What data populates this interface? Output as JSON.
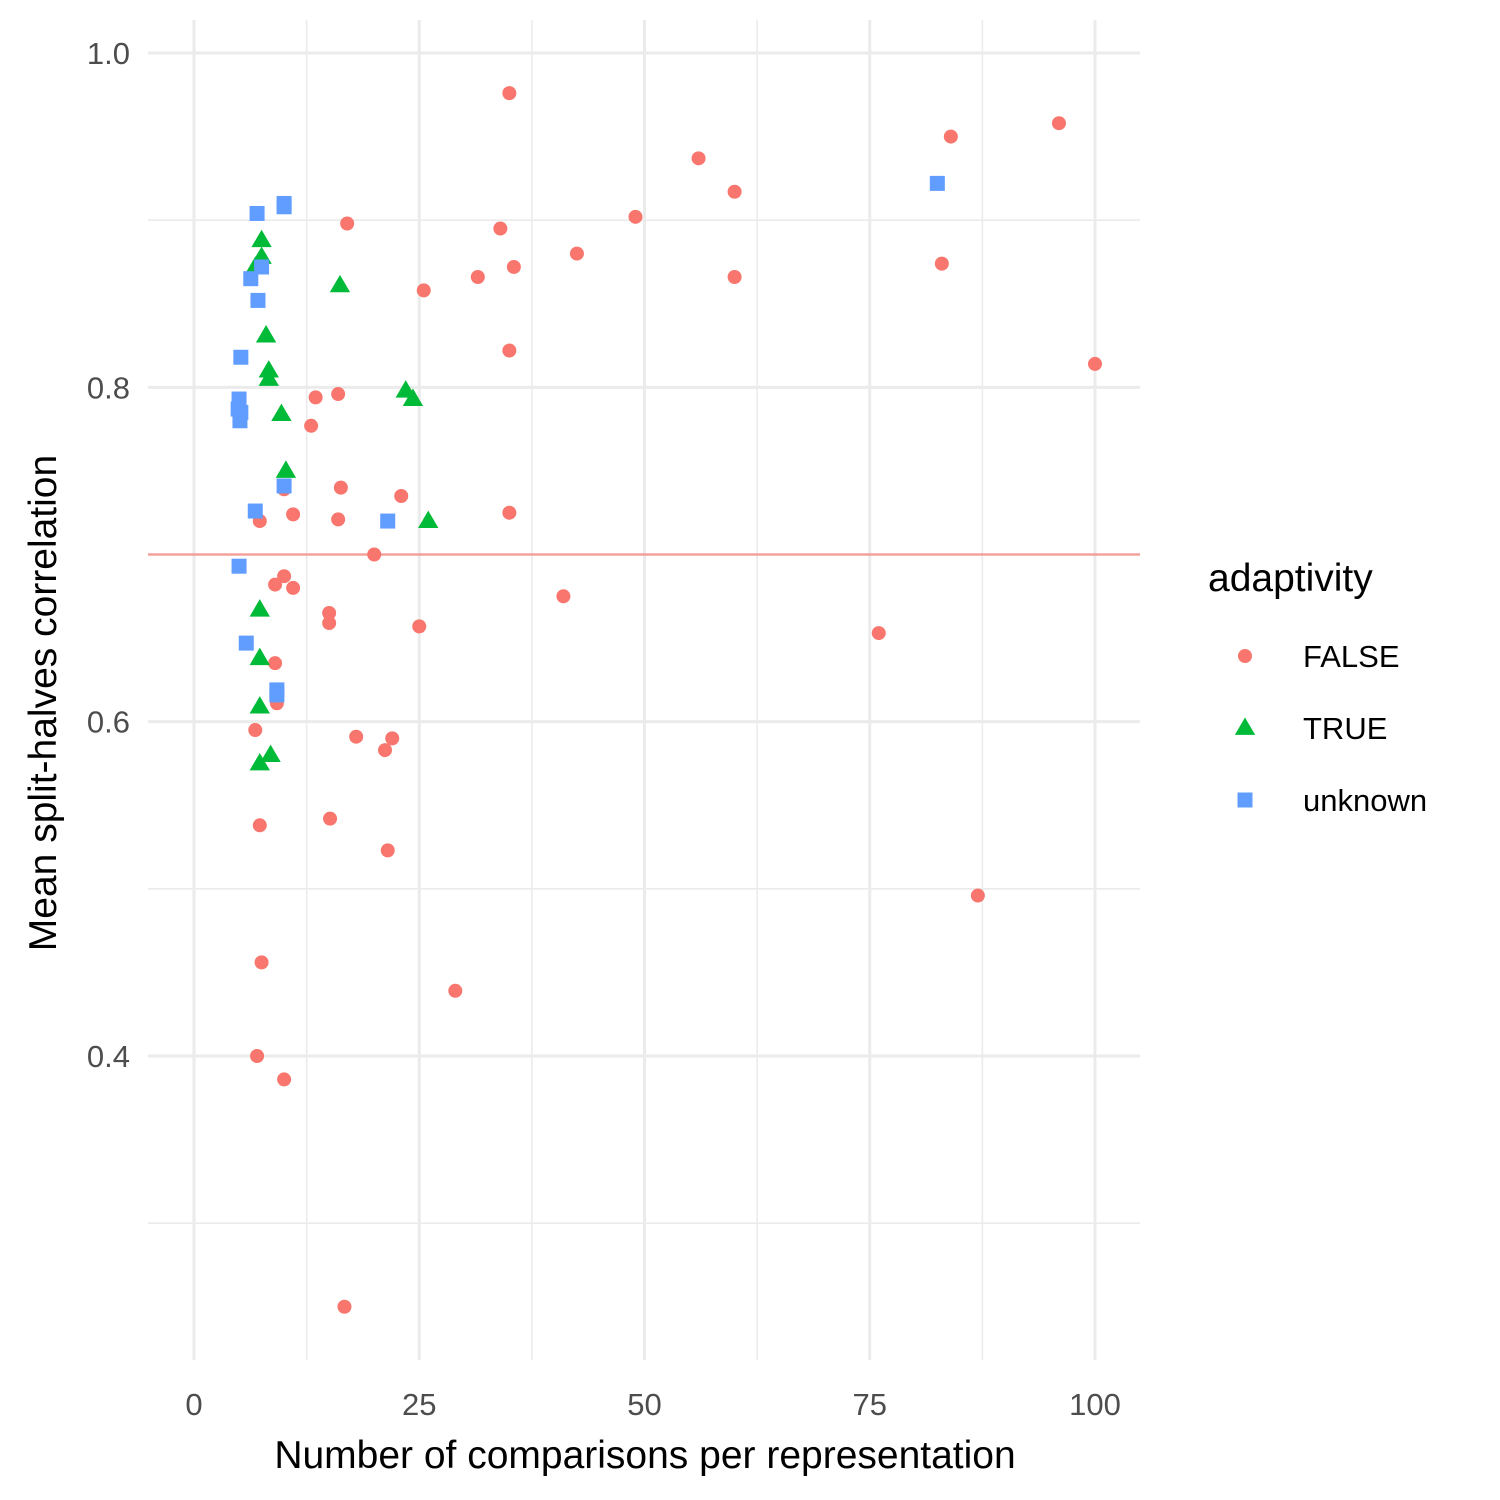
{
  "chart_data": {
    "type": "scatter",
    "xlabel": "Number of comparisons per representation",
    "ylabel": "Mean split-halves correlation",
    "xlim": [
      0,
      100
    ],
    "ylim": [
      0.3,
      1.0
    ],
    "x_ticks": [
      0,
      25,
      50,
      75,
      100
    ],
    "y_ticks": [
      0.4,
      0.6,
      0.8,
      1.0
    ],
    "x_tick_labels": [
      "0",
      "25",
      "50",
      "75",
      "100"
    ],
    "y_tick_labels": [
      "0.4",
      "0.6",
      "0.8",
      "1.0"
    ],
    "grid": true,
    "reference_line": {
      "y": 0.7,
      "color": "#F8766D"
    },
    "legend": {
      "title": "adaptivity",
      "position": "right"
    },
    "series": [
      {
        "name": "FALSE",
        "shape": "circle",
        "color": "#F8766D",
        "points": [
          [
            35,
            0.976
          ],
          [
            96,
            0.958
          ],
          [
            84,
            0.95
          ],
          [
            56,
            0.937
          ],
          [
            60,
            0.917
          ],
          [
            49,
            0.902
          ],
          [
            17,
            0.898
          ],
          [
            34,
            0.895
          ],
          [
            42.5,
            0.88
          ],
          [
            35.5,
            0.872
          ],
          [
            83,
            0.874
          ],
          [
            31.5,
            0.866
          ],
          [
            60,
            0.866
          ],
          [
            25.5,
            0.858
          ],
          [
            35,
            0.822
          ],
          [
            100,
            0.814
          ],
          [
            16,
            0.796
          ],
          [
            13.5,
            0.794
          ],
          [
            13,
            0.777
          ],
          [
            16.3,
            0.74
          ],
          [
            10,
            0.739
          ],
          [
            23,
            0.735
          ],
          [
            35,
            0.725
          ],
          [
            11,
            0.724
          ],
          [
            7.3,
            0.72
          ],
          [
            16,
            0.721
          ],
          [
            20,
            0.7
          ],
          [
            10,
            0.687
          ],
          [
            9,
            0.682
          ],
          [
            11,
            0.68
          ],
          [
            41,
            0.675
          ],
          [
            15,
            0.665
          ],
          [
            15,
            0.659
          ],
          [
            25,
            0.657
          ],
          [
            76,
            0.653
          ],
          [
            9,
            0.635
          ],
          [
            9.2,
            0.611
          ],
          [
            6.8,
            0.595
          ],
          [
            18,
            0.591
          ],
          [
            22,
            0.59
          ],
          [
            21.2,
            0.583
          ],
          [
            15.1,
            0.542
          ],
          [
            7.3,
            0.538
          ],
          [
            21.5,
            0.523
          ],
          [
            87,
            0.496
          ],
          [
            7.5,
            0.456
          ],
          [
            29,
            0.439
          ],
          [
            7,
            0.4
          ],
          [
            10,
            0.386
          ],
          [
            16.7,
            0.25
          ]
        ]
      },
      {
        "name": "TRUE",
        "shape": "triangle",
        "color": "#00BA38",
        "points": [
          [
            7.5,
            0.888
          ],
          [
            7.5,
            0.878
          ],
          [
            6.8,
            0.872
          ],
          [
            16.2,
            0.861
          ],
          [
            8,
            0.831
          ],
          [
            8.3,
            0.81
          ],
          [
            8.3,
            0.805
          ],
          [
            23.5,
            0.798
          ],
          [
            24.3,
            0.793
          ],
          [
            9.7,
            0.784
          ],
          [
            10.2,
            0.75
          ],
          [
            26,
            0.72
          ],
          [
            7.3,
            0.667
          ],
          [
            7.3,
            0.638
          ],
          [
            7.3,
            0.609
          ],
          [
            8.5,
            0.58
          ],
          [
            7.3,
            0.575
          ]
        ]
      },
      {
        "name": "unknown",
        "shape": "square",
        "color": "#619CFF",
        "points": [
          [
            10,
            0.91
          ],
          [
            10,
            0.908
          ],
          [
            7,
            0.904
          ],
          [
            82.5,
            0.922
          ],
          [
            7.5,
            0.872
          ],
          [
            6.3,
            0.865
          ],
          [
            7.1,
            0.852
          ],
          [
            5.2,
            0.818
          ],
          [
            5,
            0.793
          ],
          [
            5.2,
            0.785
          ],
          [
            4.9,
            0.787
          ],
          [
            5.1,
            0.78
          ],
          [
            10,
            0.741
          ],
          [
            6.8,
            0.726
          ],
          [
            21.5,
            0.72
          ],
          [
            5,
            0.693
          ],
          [
            5.8,
            0.647
          ],
          [
            9.2,
            0.619
          ],
          [
            9.2,
            0.616
          ]
        ]
      }
    ]
  }
}
